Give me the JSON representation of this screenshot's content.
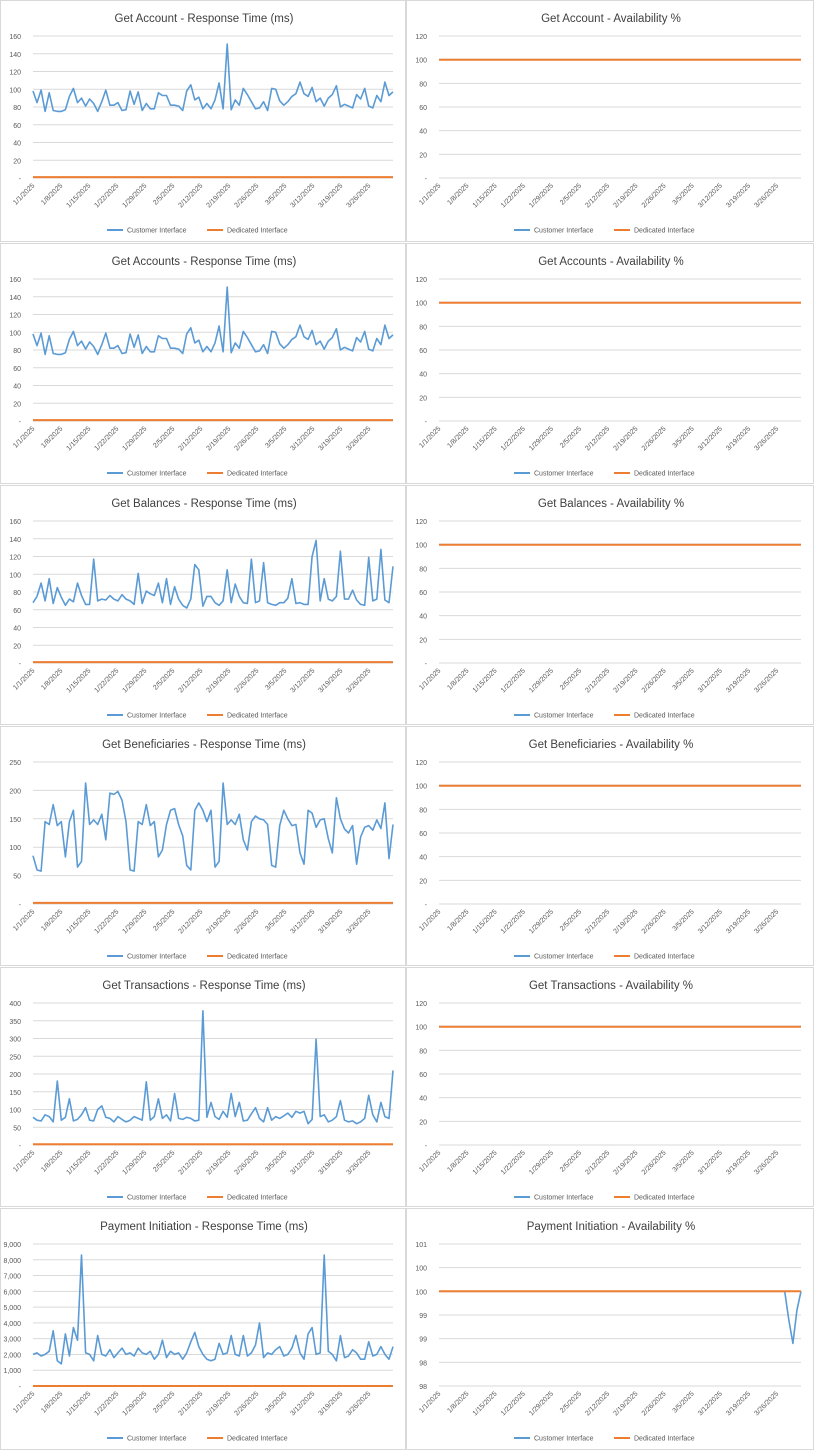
{
  "x_ticks": [
    "1/1/2025",
    "1/8/2025",
    "1/15/2025",
    "1/22/2025",
    "1/29/2025",
    "2/5/2025",
    "2/12/2025",
    "2/19/2025",
    "2/26/2025",
    "3/5/2025",
    "3/12/2025",
    "3/19/2025",
    "3/26/2025"
  ],
  "colors": {
    "customer": "#5b9bd5",
    "dedicated": "#ed7d31",
    "grid": "#d9d9d9",
    "text": "#595959",
    "title": "#404040"
  },
  "chart_data": [
    {
      "type": "line",
      "title": "Get Account - Response Time (ms)",
      "ylim": [
        0,
        160
      ],
      "yticks": [
        "-",
        "20",
        "40",
        "60",
        "80",
        "100",
        "120",
        "140",
        "160"
      ],
      "legend": "bottom",
      "grid": true,
      "series": [
        {
          "name": "Customer Interface",
          "values": [
            98,
            85,
            99,
            75,
            96,
            76,
            75,
            75,
            77,
            92,
            101,
            85,
            90,
            81,
            89,
            84,
            75,
            86,
            99,
            82,
            82,
            85,
            76,
            77,
            98,
            83,
            97,
            76,
            84,
            78,
            78,
            96,
            93,
            93,
            82,
            82,
            81,
            76,
            98,
            105,
            88,
            91,
            78,
            84,
            78,
            88,
            107,
            78,
            151,
            77,
            88,
            82,
            101,
            94,
            86,
            78,
            79,
            86,
            76,
            101,
            100,
            87,
            82,
            86,
            92,
            95,
            108,
            95,
            92,
            102,
            86,
            90,
            81,
            90,
            94,
            104,
            80,
            83,
            81,
            79,
            94,
            89,
            101,
            81,
            79,
            93,
            86,
            108,
            93,
            97
          ]
        },
        {
          "name": "Dedicated Interface",
          "values": [
            1,
            1
          ]
        }
      ]
    },
    {
      "type": "line",
      "title": "Get Account - Availability %",
      "ylim": [
        0,
        120
      ],
      "yticks": [
        "-",
        "20",
        "40",
        "60",
        "80",
        "100",
        "120"
      ],
      "legend": "bottom",
      "grid": true,
      "series": [
        {
          "name": "Customer Interface",
          "values": [
            100,
            100
          ]
        },
        {
          "name": "Dedicated Interface",
          "values": [
            100,
            100
          ]
        }
      ]
    },
    {
      "type": "line",
      "title": "Get Accounts - Response Time (ms)",
      "ylim": [
        0,
        160
      ],
      "yticks": [
        "-",
        "20",
        "40",
        "60",
        "80",
        "100",
        "120",
        "140",
        "160"
      ],
      "legend": "bottom",
      "grid": true,
      "series": [
        {
          "name": "Customer Interface",
          "values": [
            98,
            85,
            99,
            75,
            96,
            76,
            75,
            75,
            77,
            92,
            101,
            85,
            90,
            81,
            89,
            84,
            75,
            86,
            99,
            82,
            82,
            85,
            76,
            77,
            98,
            83,
            97,
            76,
            84,
            78,
            78,
            96,
            93,
            93,
            82,
            82,
            81,
            76,
            98,
            105,
            88,
            91,
            78,
            84,
            78,
            88,
            107,
            78,
            151,
            77,
            88,
            82,
            101,
            94,
            86,
            78,
            79,
            86,
            76,
            101,
            100,
            87,
            82,
            86,
            92,
            95,
            108,
            95,
            92,
            102,
            86,
            90,
            81,
            90,
            94,
            104,
            80,
            83,
            81,
            79,
            94,
            89,
            101,
            81,
            79,
            93,
            86,
            108,
            93,
            97
          ]
        },
        {
          "name": "Dedicated Interface",
          "values": [
            1,
            1
          ]
        }
      ]
    },
    {
      "type": "line",
      "title": "Get Accounts - Availability %",
      "ylim": [
        0,
        120
      ],
      "yticks": [
        "-",
        "20",
        "40",
        "60",
        "80",
        "100",
        "120"
      ],
      "legend": "bottom",
      "grid": true,
      "series": [
        {
          "name": "Customer Interface",
          "values": [
            100,
            100
          ]
        },
        {
          "name": "Dedicated Interface",
          "values": [
            100,
            100
          ]
        }
      ]
    },
    {
      "type": "line",
      "title": "Get Balances - Response Time (ms)",
      "ylim": [
        0,
        160
      ],
      "yticks": [
        "-",
        "20",
        "40",
        "60",
        "80",
        "100",
        "120",
        "140",
        "160"
      ],
      "legend": "bottom",
      "grid": true,
      "series": [
        {
          "name": "Customer Interface",
          "values": [
            68,
            75,
            90,
            70,
            95,
            67,
            85,
            74,
            65,
            72,
            69,
            90,
            76,
            66,
            66,
            117,
            70,
            72,
            71,
            76,
            72,
            70,
            77,
            72,
            70,
            66,
            101,
            67,
            81,
            78,
            76,
            90,
            68,
            95,
            66,
            86,
            72,
            65,
            62,
            72,
            111,
            105,
            64,
            75,
            75,
            68,
            65,
            70,
            105,
            68,
            89,
            75,
            68,
            67,
            117,
            68,
            70,
            113,
            68,
            66,
            65,
            68,
            68,
            73,
            95,
            67,
            68,
            66,
            66,
            120,
            138,
            70,
            95,
            72,
            70,
            75,
            126,
            72,
            72,
            82,
            71,
            66,
            65,
            119,
            70,
            72,
            128,
            71,
            68,
            109
          ]
        },
        {
          "name": "Dedicated Interface",
          "values": [
            1,
            1
          ]
        }
      ]
    },
    {
      "type": "line",
      "title": "Get Balances - Availability %",
      "ylim": [
        0,
        120
      ],
      "yticks": [
        "-",
        "20",
        "40",
        "60",
        "80",
        "100",
        "120"
      ],
      "legend": "bottom",
      "grid": true,
      "series": [
        {
          "name": "Customer Interface",
          "values": [
            100,
            100
          ]
        },
        {
          "name": "Dedicated Interface",
          "values": [
            100,
            100
          ]
        }
      ]
    },
    {
      "type": "line",
      "title": "Get Beneficiaries - Response Time (ms)",
      "ylim": [
        0,
        250
      ],
      "yticks": [
        "-",
        "50",
        "100",
        "150",
        "200",
        "250"
      ],
      "legend": "bottom",
      "grid": true,
      "series": [
        {
          "name": "Customer Interface",
          "values": [
            85,
            60,
            58,
            145,
            140,
            175,
            138,
            145,
            83,
            145,
            165,
            65,
            75,
            213,
            140,
            148,
            140,
            158,
            113,
            195,
            193,
            198,
            183,
            145,
            60,
            58,
            145,
            140,
            175,
            138,
            145,
            83,
            95,
            140,
            165,
            168,
            140,
            120,
            68,
            60,
            165,
            178,
            165,
            145,
            165,
            65,
            75,
            213,
            140,
            148,
            140,
            158,
            113,
            95,
            145,
            155,
            150,
            148,
            140,
            68,
            65,
            138,
            165,
            150,
            138,
            140,
            90,
            70,
            165,
            160,
            135,
            148,
            150,
            115,
            90,
            187,
            150,
            132,
            125,
            138,
            70,
            118,
            135,
            138,
            130,
            148,
            133,
            178,
            80,
            140
          ]
        },
        {
          "name": "Dedicated Interface",
          "values": [
            2,
            2
          ]
        }
      ]
    },
    {
      "type": "line",
      "title": "Get Beneficiaries - Availability %",
      "ylim": [
        0,
        120
      ],
      "yticks": [
        "-",
        "20",
        "40",
        "60",
        "80",
        "100",
        "120"
      ],
      "legend": "bottom",
      "grid": true,
      "series": [
        {
          "name": "Customer Interface",
          "values": [
            100,
            100
          ]
        },
        {
          "name": "Dedicated Interface",
          "values": [
            100,
            100
          ]
        }
      ]
    },
    {
      "type": "line",
      "title": "Get Transactions - Response Time (ms)",
      "ylim": [
        0,
        400
      ],
      "yticks": [
        "-",
        "50",
        "100",
        "150",
        "200",
        "250",
        "300",
        "350",
        "400"
      ],
      "legend": "bottom",
      "grid": true,
      "series": [
        {
          "name": "Customer Interface",
          "values": [
            78,
            70,
            68,
            85,
            80,
            65,
            180,
            70,
            78,
            130,
            68,
            72,
            85,
            105,
            70,
            68,
            100,
            110,
            78,
            75,
            65,
            80,
            72,
            65,
            70,
            80,
            75,
            70,
            178,
            70,
            80,
            130,
            75,
            85,
            68,
            145,
            75,
            72,
            78,
            75,
            68,
            70,
            378,
            78,
            120,
            80,
            72,
            95,
            78,
            145,
            80,
            120,
            68,
            70,
            88,
            105,
            75,
            65,
            105,
            70,
            80,
            75,
            82,
            90,
            78,
            95,
            90,
            95,
            60,
            72,
            298,
            80,
            85,
            65,
            70,
            80,
            125,
            70,
            65,
            68,
            60,
            65,
            75,
            140,
            85,
            65,
            120,
            80,
            75,
            210
          ]
        },
        {
          "name": "Dedicated Interface",
          "values": [
            2,
            2
          ]
        }
      ]
    },
    {
      "type": "line",
      "title": "Get Transactions - Availability %",
      "ylim": [
        0,
        120
      ],
      "yticks": [
        "-",
        "20",
        "40",
        "60",
        "80",
        "100",
        "120"
      ],
      "legend": "bottom",
      "grid": true,
      "series": [
        {
          "name": "Customer Interface",
          "values": [
            100,
            100
          ]
        },
        {
          "name": "Dedicated Interface",
          "values": [
            100,
            100
          ]
        }
      ]
    },
    {
      "type": "line",
      "title": "Payment Initiation - Response Time (ms)",
      "ylim": [
        0,
        9000
      ],
      "yticks": [
        "-",
        "1,000",
        "2,000",
        "3,000",
        "4,000",
        "5,000",
        "6,000",
        "7,000",
        "8,000",
        "9,000"
      ],
      "legend": "bottom",
      "grid": true,
      "series": [
        {
          "name": "Customer Interface",
          "values": [
            2000,
            2100,
            1900,
            2000,
            2200,
            3500,
            1600,
            1400,
            3300,
            1900,
            3700,
            2900,
            8300,
            2100,
            2000,
            1600,
            3200,
            2000,
            1900,
            2300,
            1800,
            2100,
            2400,
            2000,
            2100,
            1900,
            2400,
            2100,
            2000,
            2200,
            1700,
            2000,
            2900,
            1800,
            2200,
            2000,
            2100,
            1700,
            2100,
            2800,
            3400,
            2500,
            2000,
            1700,
            1600,
            1700,
            2700,
            2000,
            2100,
            3200,
            2000,
            1900,
            3200,
            1900,
            2100,
            2600,
            4000,
            1800,
            2100,
            2000,
            2300,
            2500,
            1900,
            2000,
            2400,
            3200,
            2100,
            1700,
            3300,
            3700,
            2000,
            2100,
            8300,
            2200,
            2000,
            1600,
            3200,
            1800,
            1900,
            2300,
            2100,
            1700,
            1700,
            2800,
            1900,
            2000,
            2500,
            2000,
            1700,
            2500
          ]
        },
        {
          "name": "Dedicated Interface",
          "values": [
            2,
            2
          ]
        }
      ]
    },
    {
      "type": "line",
      "title": "Payment Initiation - Availability %",
      "ylim": [
        98,
        101
      ],
      "yticks": [
        "98",
        "98",
        "99",
        "99",
        "100",
        "100",
        "101"
      ],
      "legend": "bottom",
      "grid": true,
      "series": [
        {
          "name": "Customer Interface",
          "values": [
            100,
            100,
            100,
            100,
            100,
            100,
            100,
            100,
            100,
            100,
            100,
            100,
            100,
            100,
            100,
            100,
            100,
            100,
            100,
            100,
            100,
            100,
            100,
            100,
            100,
            100,
            100,
            100,
            100,
            100,
            100,
            100,
            100,
            100,
            100,
            100,
            100,
            100,
            100,
            100,
            100,
            100,
            100,
            100,
            100,
            100,
            100,
            100,
            100,
            100,
            100,
            100,
            100,
            100,
            100,
            100,
            100,
            100,
            100,
            100,
            100,
            100,
            100,
            100,
            100,
            100,
            100,
            100,
            100,
            100,
            100,
            100,
            100,
            100,
            100,
            100,
            100,
            100,
            100,
            100,
            100,
            100,
            100,
            100,
            100,
            100,
            99.4,
            98.9,
            99.6,
            100
          ]
        },
        {
          "name": "Dedicated Interface",
          "values": [
            100,
            100
          ]
        }
      ]
    }
  ]
}
